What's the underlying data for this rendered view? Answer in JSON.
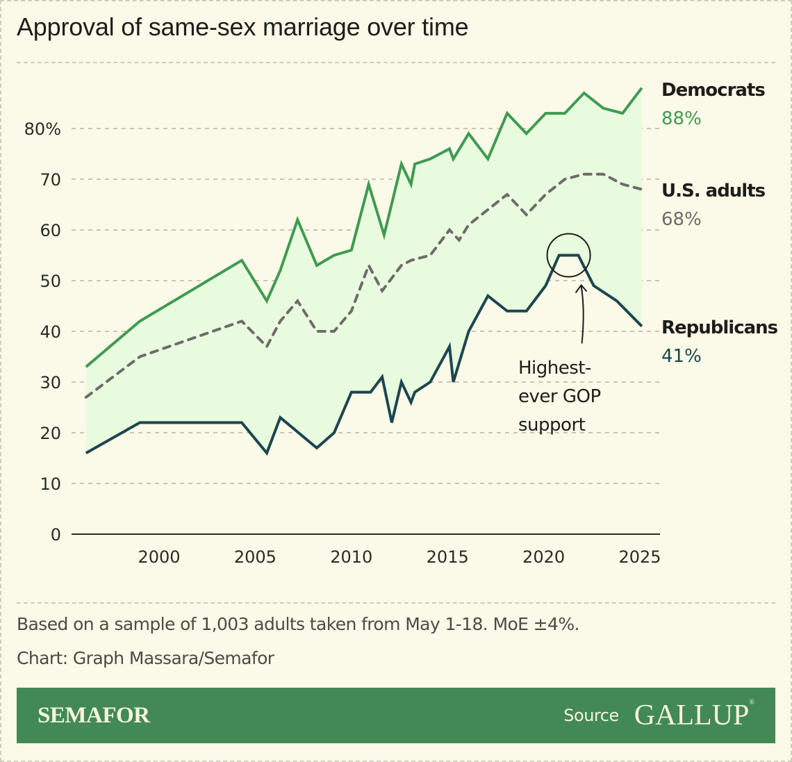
{
  "header": {
    "title": "Approval of same-sex marriage over time"
  },
  "colors": {
    "democrats": "#3f9b52",
    "us_adults": "#6e6b6a",
    "republicans": "#1c4650",
    "band_fill": "#e9fbdf",
    "background": "#fbf9e7",
    "grid": "#c9c6b6",
    "banner": "#428956"
  },
  "chart_data": {
    "type": "line",
    "title": "Approval of same-sex marriage over time",
    "xlabel": "",
    "ylabel": "",
    "xlim": [
      1996,
      2025.6
    ],
    "ylim": [
      0,
      88
    ],
    "x_ticks": [
      2000,
      2005,
      2010,
      2015,
      2020,
      2025
    ],
    "x_tick_labels": [
      "2000",
      "2005",
      "2010",
      "2015",
      "2020",
      "2025"
    ],
    "y_ticks": [
      0,
      10,
      20,
      30,
      40,
      50,
      60,
      70,
      80
    ],
    "y_tick_labels": [
      "0",
      "10",
      "20",
      "30",
      "40",
      "50",
      "60",
      "70",
      "80%"
    ],
    "grid": true,
    "shaded_band": "between Democrats and Republicans",
    "series": [
      {
        "name": "Democrats",
        "end_label": "88%",
        "style": "solid",
        "points": [
          [
            1996.2,
            33
          ],
          [
            1999,
            42
          ],
          [
            2004.3,
            54
          ],
          [
            2005.6,
            46
          ],
          [
            2006.3,
            52
          ],
          [
            2007.2,
            62
          ],
          [
            2008.2,
            53
          ],
          [
            2009.1,
            55
          ],
          [
            2010,
            56
          ],
          [
            2010.9,
            69
          ],
          [
            2011.7,
            59
          ],
          [
            2012.6,
            73
          ],
          [
            2013.1,
            69
          ],
          [
            2013.3,
            73
          ],
          [
            2014.1,
            74
          ],
          [
            2015.1,
            76
          ],
          [
            2015.3,
            74
          ],
          [
            2016.1,
            79
          ],
          [
            2017.1,
            74
          ],
          [
            2018.1,
            83
          ],
          [
            2019.1,
            79
          ],
          [
            2020.1,
            83
          ],
          [
            2021.1,
            83
          ],
          [
            2022.1,
            87
          ],
          [
            2023.1,
            84
          ],
          [
            2024.1,
            83
          ],
          [
            2025.1,
            88
          ]
        ]
      },
      {
        "name": "U.S. adults",
        "end_label": "68%",
        "style": "dashed",
        "points": [
          [
            1996.2,
            27
          ],
          [
            1999,
            35
          ],
          [
            2004.3,
            42
          ],
          [
            2005.6,
            37
          ],
          [
            2006.3,
            42
          ],
          [
            2007.2,
            46
          ],
          [
            2008.2,
            40
          ],
          [
            2009.1,
            40
          ],
          [
            2010,
            44
          ],
          [
            2010.9,
            53
          ],
          [
            2011.6,
            48
          ],
          [
            2012.6,
            53
          ],
          [
            2013.1,
            54
          ],
          [
            2014.1,
            55
          ],
          [
            2015.1,
            60
          ],
          [
            2015.6,
            58
          ],
          [
            2016.1,
            61
          ],
          [
            2017.1,
            64
          ],
          [
            2018.1,
            67
          ],
          [
            2019.1,
            63
          ],
          [
            2020.1,
            67
          ],
          [
            2021.1,
            70
          ],
          [
            2022.1,
            71
          ],
          [
            2023.1,
            71
          ],
          [
            2024.1,
            69
          ],
          [
            2025.1,
            68
          ]
        ]
      },
      {
        "name": "Republicans",
        "end_label": "41%",
        "style": "solid",
        "points": [
          [
            1996.2,
            16
          ],
          [
            1999,
            22
          ],
          [
            2004.3,
            22
          ],
          [
            2005.6,
            16
          ],
          [
            2006.3,
            23
          ],
          [
            2008.2,
            17
          ],
          [
            2009.1,
            20
          ],
          [
            2010,
            28
          ],
          [
            2011,
            28
          ],
          [
            2011.6,
            31
          ],
          [
            2012.1,
            22
          ],
          [
            2012.6,
            30
          ],
          [
            2013.1,
            26
          ],
          [
            2013.3,
            28
          ],
          [
            2014.1,
            30
          ],
          [
            2015.1,
            37
          ],
          [
            2015.3,
            30
          ],
          [
            2016.1,
            40
          ],
          [
            2017.1,
            47
          ],
          [
            2018.1,
            44
          ],
          [
            2019.1,
            44
          ],
          [
            2020.1,
            49
          ],
          [
            2020.8,
            55
          ],
          [
            2021.8,
            55
          ],
          [
            2022.6,
            49
          ],
          [
            2023.8,
            46
          ],
          [
            2025.1,
            41
          ]
        ]
      }
    ],
    "annotations": [
      {
        "text_lines": [
          "Highest-",
          "ever GOP",
          "support"
        ],
        "target_series": "Republicans",
        "target_value": 55,
        "marker": "circle"
      }
    ]
  },
  "footer": {
    "note": "Based on a sample of 1,003 adults taken from May 1-18. MoE ±4%.",
    "credit": "Chart: Graph Massara/Semafor",
    "brand": "SEMAFOR",
    "source_label": "Source",
    "source_name": "GALLUP",
    "registered_mark": "®"
  }
}
